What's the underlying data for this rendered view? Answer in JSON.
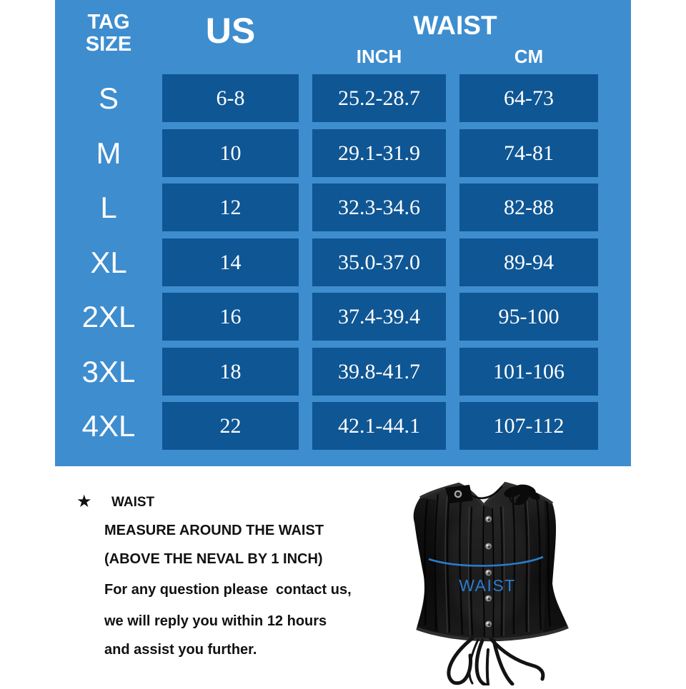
{
  "panel": {
    "background_color": "#3E8DCF",
    "cell_color": "#0F5694",
    "text_color": "#FFFFFF"
  },
  "table": {
    "corner_header_line1": "TAG",
    "corner_header_line2": "SIZE",
    "col_us": "US",
    "col_waist": "WAIST",
    "col_inch": "INCH",
    "col_cm": "CM",
    "rows": [
      {
        "size": "S",
        "us": "6-8",
        "inch": "25.2-28.7",
        "cm": "64-73"
      },
      {
        "size": "M",
        "us": "10",
        "inch": "29.1-31.9",
        "cm": "74-81"
      },
      {
        "size": "L",
        "us": "12",
        "inch": "32.3-34.6",
        "cm": "82-88"
      },
      {
        "size": "XL",
        "us": "14",
        "inch": "35.0-37.0",
        "cm": "89-94"
      },
      {
        "size": "2XL",
        "us": "16",
        "inch": "37.4-39.4",
        "cm": "95-100"
      },
      {
        "size": "3XL",
        "us": "18",
        "inch": "39.8-41.7",
        "cm": "101-106"
      },
      {
        "size": "4XL",
        "us": "22",
        "inch": "42.1-44.1",
        "cm": "107-112"
      }
    ]
  },
  "notes": {
    "star_icon": "★",
    "heading": "WAIST",
    "lines": [
      "MEASURE AROUND THE WAIST",
      "(ABOVE THE NEVAL BY 1 INCH)",
      "For any question please  contact us,",
      "we will reply you within 12 hours",
      "and assist you further."
    ]
  },
  "illustration": {
    "waist_label": "WAIST",
    "label_color": "#2B7CCC"
  }
}
